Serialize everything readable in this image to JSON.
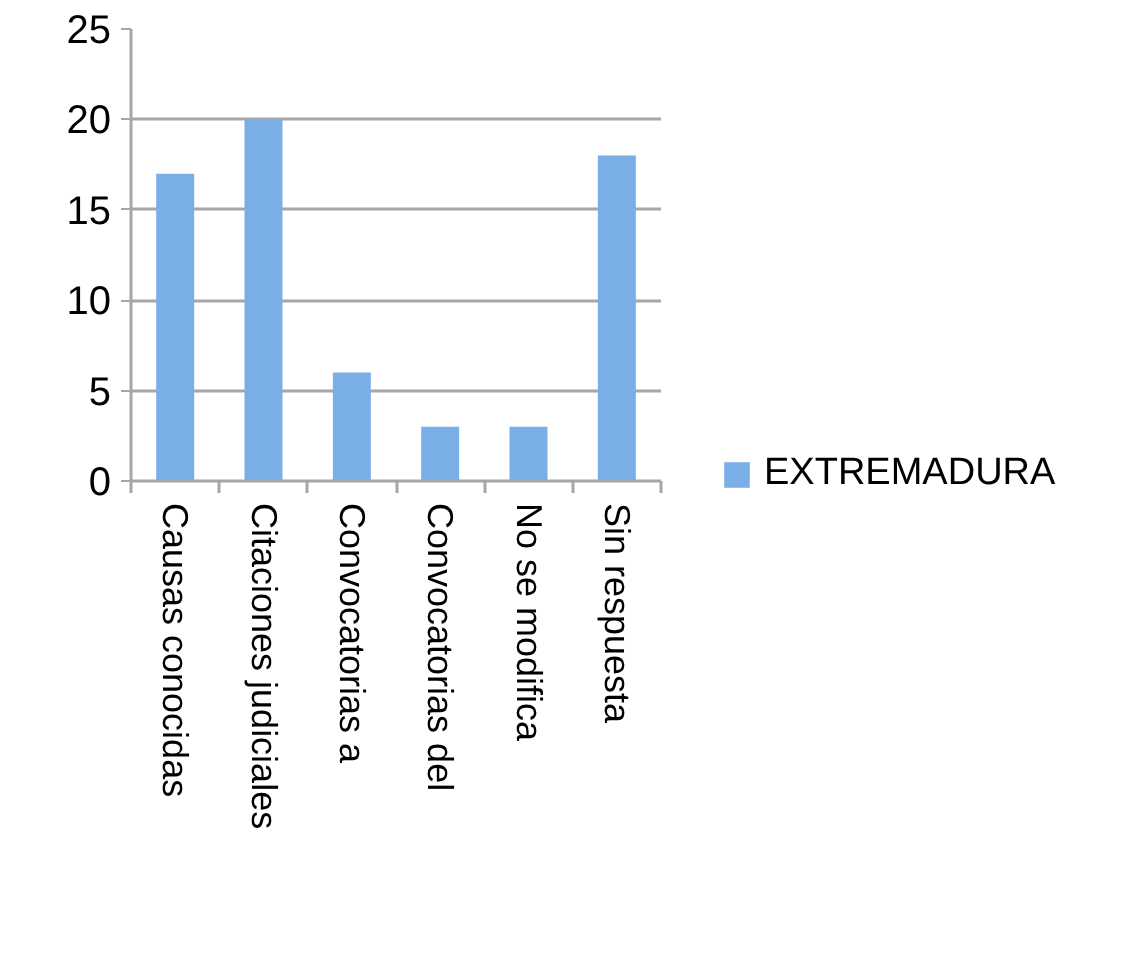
{
  "chart_data": {
    "type": "bar",
    "categories": [
      "Causas conocidas",
      "Citaciones judiciales",
      "Convocatorias a",
      "Convocatorias del",
      "No se modifica",
      "Sin respuesta"
    ],
    "series": [
      {
        "name": "EXTREMADURA",
        "color": "#7aaee6",
        "values": [
          17,
          20,
          6,
          3,
          3,
          18
        ]
      }
    ],
    "ylim": [
      0,
      25
    ],
    "yticks": [
      0,
      5,
      10,
      15,
      20,
      25
    ],
    "grid": "y",
    "legend": "right"
  }
}
